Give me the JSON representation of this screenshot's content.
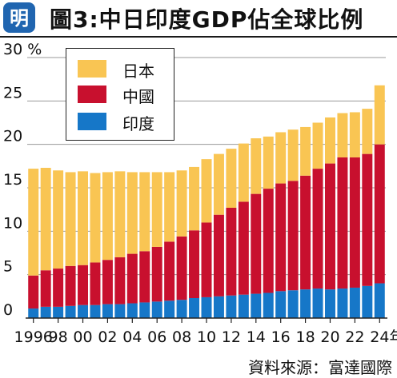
{
  "header": {
    "logo_text": "明",
    "title": "圖3:中日印度GDP佔全球比例"
  },
  "source": "資料來源：富達國際",
  "colors": {
    "japan": "#F9C553",
    "china": "#C8102E",
    "india": "#1677C8",
    "logo_bg": "#2065B0"
  },
  "chart_data": {
    "type": "bar",
    "stacked": true,
    "years": [
      1996,
      1997,
      1998,
      1999,
      2000,
      2001,
      2002,
      2003,
      2004,
      2005,
      2006,
      2007,
      2008,
      2009,
      2010,
      2011,
      2012,
      2013,
      2014,
      2015,
      2016,
      2017,
      2018,
      2019,
      2020,
      2021,
      2022,
      2023,
      2024
    ],
    "x_tick_labels": [
      "1996",
      "98",
      "00",
      "02",
      "04",
      "06",
      "08",
      "10",
      "12",
      "14",
      "16",
      "18",
      "20",
      "22",
      "24年"
    ],
    "y_ticks": [
      "0",
      "5",
      "10",
      "15",
      "20",
      "25",
      "30 %"
    ],
    "ylim": [
      0,
      30
    ],
    "series": [
      {
        "name": "印度",
        "color": "#1677C8",
        "values": [
          1.1,
          1.3,
          1.3,
          1.4,
          1.5,
          1.5,
          1.6,
          1.6,
          1.7,
          1.8,
          1.9,
          2.0,
          2.1,
          2.3,
          2.4,
          2.5,
          2.6,
          2.7,
          2.8,
          2.9,
          3.1,
          3.2,
          3.3,
          3.4,
          3.3,
          3.4,
          3.5,
          3.7,
          4.0
        ]
      },
      {
        "name": "中國",
        "color": "#C8102E",
        "values": [
          3.8,
          4.2,
          4.4,
          4.6,
          4.6,
          4.9,
          5.1,
          5.4,
          5.7,
          5.9,
          6.3,
          6.8,
          7.3,
          7.8,
          8.6,
          9.4,
          10.1,
          10.7,
          11.5,
          12.0,
          12.4,
          12.6,
          13.1,
          13.8,
          14.5,
          15.1,
          15.0,
          15.2,
          16.0
        ]
      },
      {
        "name": "日本",
        "color": "#F9C553",
        "values": [
          12.3,
          11.8,
          11.3,
          10.8,
          10.8,
          10.3,
          10.1,
          9.9,
          9.4,
          9.1,
          8.6,
          8.0,
          7.6,
          7.3,
          7.3,
          7.0,
          6.8,
          6.7,
          6.4,
          6.0,
          5.9,
          5.9,
          5.6,
          5.3,
          5.3,
          5.1,
          5.2,
          5.2,
          6.8
        ]
      }
    ],
    "legend": {
      "position": "top-left",
      "order": [
        "日本",
        "中國",
        "印度"
      ]
    },
    "grid": "horizontal"
  }
}
